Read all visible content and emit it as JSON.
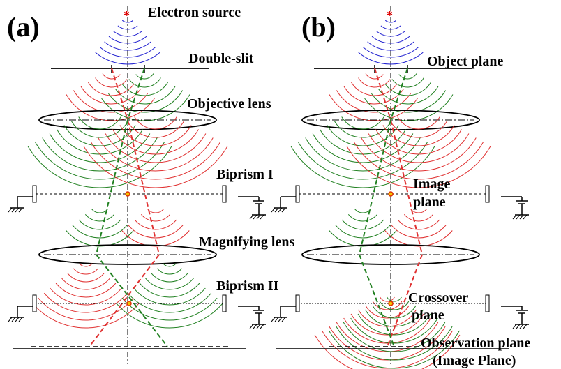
{
  "panels": [
    {
      "tag": "(a)",
      "labels": [
        "Electron source",
        "Double-slit",
        "Objective lens",
        "Biprism I",
        "Magnifying lens",
        "Biprism II"
      ]
    },
    {
      "tag": "(b)",
      "labels": [
        "Object plane",
        "Image",
        "plane",
        "Crossover",
        "plane",
        "Observation plane",
        "(Image Plane)"
      ]
    }
  ]
}
